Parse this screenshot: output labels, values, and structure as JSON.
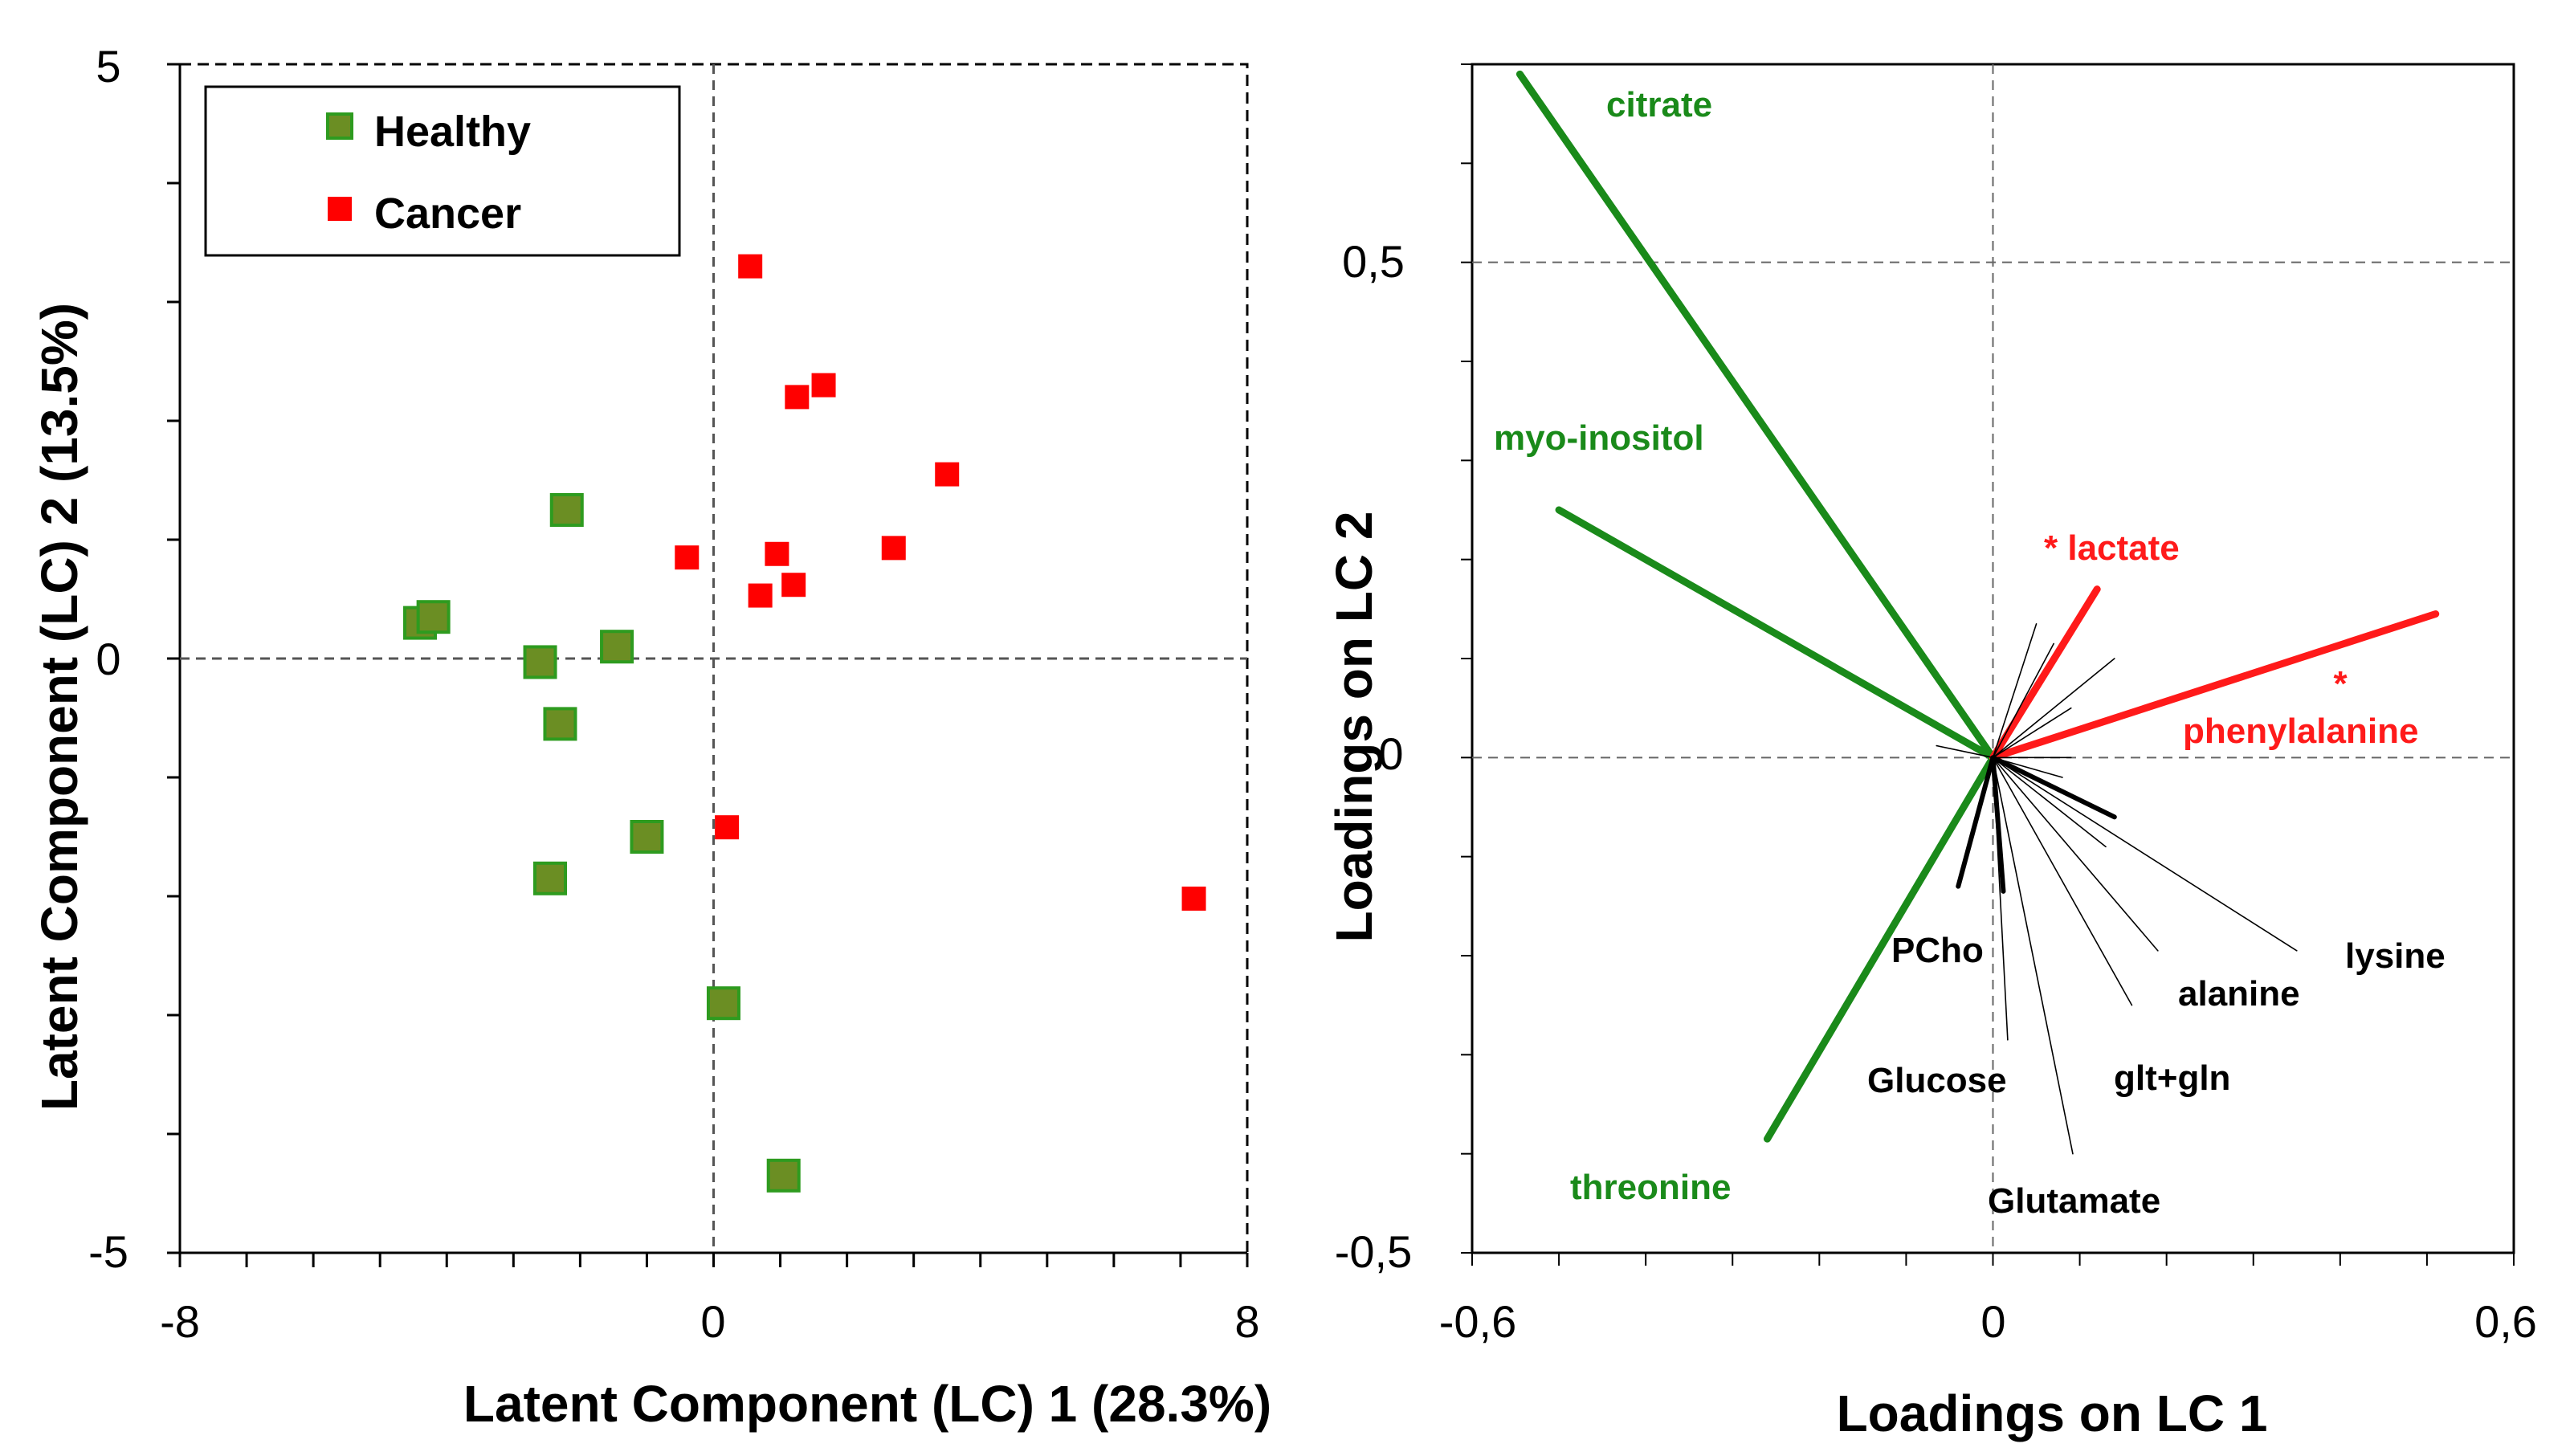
{
  "colors": {
    "healthy_fill": "#6b8e23",
    "healthy_stroke": "#2e9b1f",
    "cancer": "#ff0000",
    "green_vector": "#1a8a1a",
    "red_vector": "#ff1a1a",
    "black": "#000000",
    "guide": "#555555"
  },
  "chart_data": [
    {
      "type": "scatter",
      "title": "",
      "xlabel": "Latent Component (LC) 1 (28.3%)",
      "ylabel": "Latent Component (LC) 2 (13.5%)",
      "xlim": [
        -8,
        8
      ],
      "ylim": [
        -5,
        5
      ],
      "x_tick_labels": [
        "-8",
        "0",
        "8"
      ],
      "y_tick_labels": [
        "5",
        "0",
        "-5"
      ],
      "legend": {
        "position": "top-left",
        "entries": [
          "Healthy",
          "Cancer"
        ]
      },
      "series": [
        {
          "name": "Healthy",
          "color": "#6b8e23",
          "points": [
            [
              -2.2,
              1.25
            ],
            [
              -4.4,
              0.3
            ],
            [
              -4.2,
              0.35
            ],
            [
              -2.6,
              -0.03
            ],
            [
              -1.45,
              0.1
            ],
            [
              -2.3,
              -0.55
            ],
            [
              -1.0,
              -1.5
            ],
            [
              -2.45,
              -1.85
            ],
            [
              0.15,
              -2.9
            ],
            [
              1.05,
              -4.35
            ]
          ]
        },
        {
          "name": "Cancer",
          "color": "#ff0000",
          "points": [
            [
              0.55,
              3.3
            ],
            [
              1.25,
              2.2
            ],
            [
              1.65,
              2.3
            ],
            [
              3.5,
              1.55
            ],
            [
              -0.4,
              0.85
            ],
            [
              0.95,
              0.88
            ],
            [
              2.7,
              0.93
            ],
            [
              0.7,
              0.53
            ],
            [
              1.2,
              0.62
            ],
            [
              0.2,
              -1.42
            ],
            [
              7.2,
              -2.02
            ]
          ]
        }
      ]
    },
    {
      "type": "loadings",
      "title": "",
      "xlabel": "Loadings on LC 1",
      "ylabel": "Loadings on LC 2",
      "xlim": [
        -0.6,
        0.6
      ],
      "ylim": [
        -0.5,
        0.7
      ],
      "x_tick_labels": [
        "-0,6",
        "0",
        "0,6"
      ],
      "y_tick_labels": [
        "0,5",
        "0",
        "-0,5"
      ],
      "vectors": [
        {
          "name": "citrate",
          "x": -0.545,
          "y": 0.69,
          "color": "#1a8a1a",
          "weight": "thick",
          "label": "citrate"
        },
        {
          "name": "myo-inositol",
          "x": -0.5,
          "y": 0.25,
          "color": "#1a8a1a",
          "weight": "thick",
          "label": "myo-inositol"
        },
        {
          "name": "threonine",
          "x": -0.26,
          "y": -0.385,
          "color": "#1a8a1a",
          "weight": "thick",
          "label": "threonine"
        },
        {
          "name": "lactate",
          "x": 0.12,
          "y": 0.17,
          "color": "#ff1a1a",
          "weight": "thick",
          "label": "* lactate"
        },
        {
          "name": "phenylalanine",
          "x": 0.51,
          "y": 0.145,
          "color": "#ff1a1a",
          "weight": "thick",
          "label": "phenylalanine"
        },
        {
          "name": "PCho",
          "x": -0.04,
          "y": -0.13,
          "color": "#000000",
          "weight": "medium",
          "label": "PCho"
        },
        {
          "name": "Glucose",
          "x": 0.017,
          "y": -0.285,
          "color": "#000000",
          "weight": "thin",
          "label": "Glucose"
        },
        {
          "name": "Glutamate",
          "x": 0.092,
          "y": -0.4,
          "color": "#000000",
          "weight": "thin",
          "label": "Glutamate"
        },
        {
          "name": "glt+gln",
          "x": 0.16,
          "y": -0.25,
          "color": "#000000",
          "weight": "thin",
          "label": "glt+gln"
        },
        {
          "name": "alanine",
          "x": 0.19,
          "y": -0.195,
          "color": "#000000",
          "weight": "thin",
          "label": "alanine"
        },
        {
          "name": "lysine",
          "x": 0.35,
          "y": -0.195,
          "color": "#000000",
          "weight": "thin",
          "label": "lysine"
        },
        {
          "name": "unlabeled-1",
          "x": 0.14,
          "y": -0.06,
          "color": "#000000",
          "weight": "medium",
          "label": ""
        },
        {
          "name": "unlabeled-2",
          "x": 0.012,
          "y": -0.135,
          "color": "#000000",
          "weight": "medium",
          "label": ""
        },
        {
          "name": "unlabeled-3",
          "x": 0.13,
          "y": -0.09,
          "color": "#000000",
          "weight": "thin",
          "label": ""
        },
        {
          "name": "unlabeled-4",
          "x": 0.05,
          "y": 0.135,
          "color": "#000000",
          "weight": "thin",
          "label": ""
        },
        {
          "name": "unlabeled-5",
          "x": 0.07,
          "y": 0.115,
          "color": "#000000",
          "weight": "thin",
          "label": ""
        },
        {
          "name": "unlabeled-6",
          "x": 0.14,
          "y": 0.1,
          "color": "#000000",
          "weight": "thin",
          "label": ""
        },
        {
          "name": "unlabeled-7",
          "x": 0.09,
          "y": 0.05,
          "color": "#000000",
          "weight": "thin",
          "label": ""
        },
        {
          "name": "unlabeled-8",
          "x": 0.09,
          "y": 0.0,
          "color": "#000000",
          "weight": "thin",
          "label": ""
        },
        {
          "name": "unlabeled-9",
          "x": -0.065,
          "y": 0.012,
          "color": "#000000",
          "weight": "thin",
          "label": ""
        },
        {
          "name": "unlabeled-10",
          "x": 0.08,
          "y": -0.02,
          "color": "#000000",
          "weight": "thin",
          "label": ""
        }
      ],
      "annotations": [
        {
          "text": "*",
          "target": "phenylalanine",
          "color": "#ff1a1a"
        }
      ]
    }
  ]
}
